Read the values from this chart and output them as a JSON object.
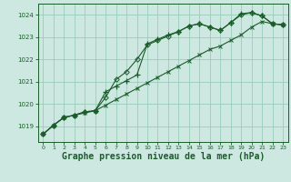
{
  "bg_color": "#cce8e0",
  "grid_color": "#99ccbb",
  "line_color": "#1a5c2a",
  "xlabel": "Graphe pression niveau de la mer (hPa)",
  "xlabel_fontsize": 7,
  "xlim": [
    -0.5,
    23.5
  ],
  "ylim": [
    1018.3,
    1024.5
  ],
  "yticks": [
    1019,
    1020,
    1021,
    1022,
    1023,
    1024
  ],
  "xticks": [
    0,
    1,
    2,
    3,
    4,
    5,
    6,
    7,
    8,
    9,
    10,
    11,
    12,
    13,
    14,
    15,
    16,
    17,
    18,
    19,
    20,
    21,
    22,
    23
  ],
  "series_upper_x": [
    0,
    1,
    2,
    3,
    4,
    5,
    6,
    7,
    8,
    9,
    10,
    11,
    12,
    13,
    14,
    15,
    16,
    17,
    18,
    19,
    20,
    21,
    22,
    23
  ],
  "series_upper_y": [
    1018.65,
    1019.05,
    1019.4,
    1019.5,
    1019.65,
    1019.7,
    1020.3,
    1021.1,
    1021.45,
    1022.0,
    1022.65,
    1022.85,
    1023.05,
    1023.25,
    1023.5,
    1023.6,
    1023.45,
    1023.3,
    1023.65,
    1024.0,
    1024.1,
    1023.95,
    1023.6,
    1023.55
  ],
  "series_mid_x": [
    0,
    1,
    2,
    3,
    4,
    5,
    6,
    7,
    8,
    9,
    10,
    11,
    12,
    13,
    14,
    15,
    16,
    17,
    18,
    19,
    20,
    21,
    22,
    23
  ],
  "series_mid_y": [
    1018.65,
    1019.05,
    1019.4,
    1019.5,
    1019.65,
    1019.7,
    1020.55,
    1020.8,
    1021.05,
    1021.3,
    1022.7,
    1022.9,
    1023.1,
    1023.25,
    1023.5,
    1023.6,
    1023.45,
    1023.3,
    1023.65,
    1024.05,
    1024.1,
    1023.95,
    1023.6,
    1023.55
  ],
  "series_straight_x": [
    0,
    1,
    2,
    3,
    4,
    5,
    6,
    7,
    8,
    9,
    10,
    11,
    12,
    13,
    14,
    15,
    16,
    17,
    18,
    19,
    20,
    21,
    22,
    23
  ],
  "series_straight_y": [
    1018.65,
    1019.05,
    1019.4,
    1019.5,
    1019.6,
    1019.7,
    1019.95,
    1020.2,
    1020.45,
    1020.7,
    1020.95,
    1021.2,
    1021.45,
    1021.7,
    1021.95,
    1022.2,
    1022.45,
    1022.6,
    1022.85,
    1023.1,
    1023.45,
    1023.7,
    1023.6,
    1023.55
  ]
}
